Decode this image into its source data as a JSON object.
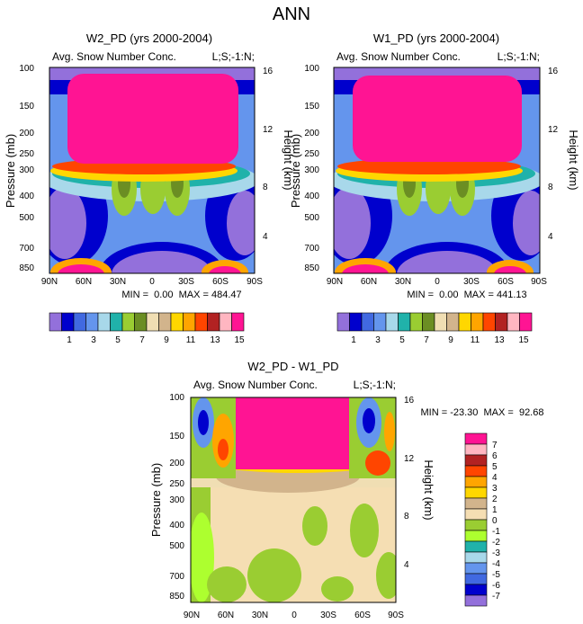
{
  "figure_title": "ANN",
  "colors": {
    "field_palette": [
      "#9370db",
      "#0000cd",
      "#4169e1",
      "#6495ed",
      "#a8d8ea",
      "#20b2aa",
      "#9acd32",
      "#6b8e23",
      "#f0deb3",
      "#d2b48c",
      "#ffd700",
      "#ffa500",
      "#ff4500",
      "#b22222",
      "#ffb6c1",
      "#ff1493"
    ],
    "diff_palette": [
      "#9370db",
      "#0000cd",
      "#4169e1",
      "#6495ed",
      "#a8d8ea",
      "#20b2aa",
      "#adff2f",
      "#9acd32",
      "#f5deb3",
      "#d2b48c",
      "#ffd700",
      "#ffa500",
      "#ff4500",
      "#b22222",
      "#ffb6c1",
      "#ff1493"
    ]
  },
  "chart_data": [
    {
      "type": "heatmap",
      "title": "W2_PD (yrs 2000-2004)",
      "subtitle_left": "Avg. Snow Number Conc.",
      "subtitle_right": "L;S;-1:N;",
      "ylabel": "Pressure (mb)",
      "ylabel_right": "Height (km)",
      "x_ticks": [
        "90N",
        "60N",
        "30N",
        "0",
        "30S",
        "60S",
        "90S"
      ],
      "y_ticks": [
        "100",
        "150",
        "200",
        "250",
        "300",
        "400",
        "500",
        "700",
        "850"
      ],
      "y_ticks_right": [
        "16",
        "12",
        "8",
        "4"
      ],
      "stats": "MIN =  0.00  MAX = 484.47",
      "colorbar_labels": [
        "1",
        "3",
        "5",
        "7",
        "9",
        "11",
        "13",
        "15"
      ],
      "description_values": {
        "min": 0.0,
        "max": 484.47
      }
    },
    {
      "type": "heatmap",
      "title": "W1_PD (yrs 2000-2004)",
      "subtitle_left": "Avg. Snow Number Conc.",
      "subtitle_right": "L;S;-1:N;",
      "ylabel": "Pressure (mb)",
      "ylabel_right": "Height (km)",
      "x_ticks": [
        "90N",
        "60N",
        "30N",
        "0",
        "30S",
        "60S",
        "90S"
      ],
      "y_ticks": [
        "100",
        "150",
        "200",
        "250",
        "300",
        "400",
        "500",
        "700",
        "850"
      ],
      "y_ticks_right": [
        "16",
        "12",
        "8",
        "4"
      ],
      "stats": "MIN =  0.00  MAX = 441.13",
      "colorbar_labels": [
        "1",
        "3",
        "5",
        "7",
        "9",
        "11",
        "13",
        "15"
      ],
      "description_values": {
        "min": 0.0,
        "max": 441.13
      }
    },
    {
      "type": "heatmap",
      "title": "W2_PD - W1_PD",
      "subtitle_left": "Avg. Snow Number Conc.",
      "subtitle_right": "L;S;-1:N;",
      "ylabel": "Pressure (mb)",
      "ylabel_right": "Height (km)",
      "x_ticks": [
        "90N",
        "60N",
        "30N",
        "0",
        "30S",
        "60S",
        "90S"
      ],
      "y_ticks": [
        "100",
        "150",
        "200",
        "250",
        "300",
        "400",
        "500",
        "700",
        "850"
      ],
      "y_ticks_right": [
        "16",
        "12",
        "8",
        "4"
      ],
      "stats": "MIN = -23.30  MAX =  92.68",
      "colorbar_labels": [
        "7",
        "6",
        "5",
        "4",
        "3",
        "2",
        "1",
        "0",
        "-1",
        "-2",
        "-3",
        "-4",
        "-5",
        "-6",
        "-7"
      ],
      "description_values": {
        "min": -23.3,
        "max": 92.68
      }
    }
  ]
}
